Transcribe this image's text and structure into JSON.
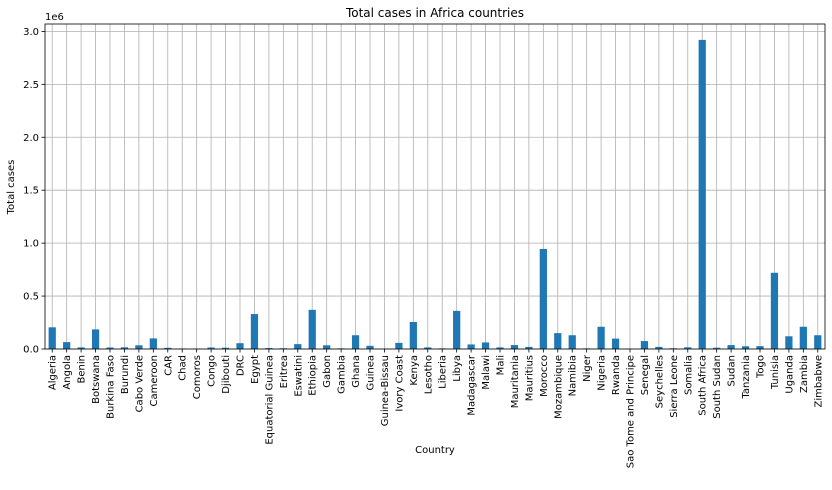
{
  "chart_data": {
    "type": "bar",
    "title": "Total cases in Africa countries",
    "xlabel": "Country",
    "ylabel": "Total cases",
    "y_scale_label": "1e6",
    "ylim": [
      0,
      3.07
    ],
    "yticks": [
      0.0,
      0.5,
      1.0,
      1.5,
      2.0,
      2.5,
      3.0
    ],
    "ytick_labels": [
      "0.0",
      "0.5",
      "1.0",
      "1.5",
      "2.0",
      "2.5",
      "3.0"
    ],
    "grid": true,
    "bar_color": "#1f77b4",
    "categories": [
      "Algeria",
      "Angola",
      "Benin",
      "Botswana",
      "Burkina Faso",
      "Burundi",
      "Cabo Verde",
      "Cameroon",
      "CAR",
      "Chad",
      "Comoros",
      "Congo",
      "Djibouti",
      "DRC",
      "Egypt",
      "Equatorial Guinea",
      "Eritrea",
      "Eswatini",
      "Ethiopia",
      "Gabon",
      "Gambia",
      "Ghana",
      "Guinea",
      "Guinea-Bissau",
      "Ivory Coast",
      "Kenya",
      "Lesotho",
      "Liberia",
      "Libya",
      "Madagascar",
      "Malawi",
      "Mali",
      "Mauritania",
      "Mauritius",
      "Morocco",
      "Mozambique",
      "Namibia",
      "Niger",
      "Nigeria",
      "Rwanda",
      "Sao Tome and Principe",
      "Senegal",
      "Seychelles",
      "Sierra Leone",
      "Somalia",
      "South Africa",
      "South Sudan",
      "Sudan",
      "Tanzania",
      "Togo",
      "Tunisia",
      "Uganda",
      "Zambia",
      "Zimbabwe"
    ],
    "values": [
      0.205,
      0.065,
      0.015,
      0.185,
      0.014,
      0.016,
      0.035,
      0.1,
      0.011,
      0.005,
      0.004,
      0.014,
      0.012,
      0.055,
      0.33,
      0.009,
      0.007,
      0.046,
      0.37,
      0.035,
      0.006,
      0.13,
      0.03,
      0.004,
      0.058,
      0.255,
      0.015,
      0.006,
      0.36,
      0.043,
      0.062,
      0.015,
      0.037,
      0.02,
      0.945,
      0.15,
      0.13,
      0.006,
      0.21,
      0.098,
      0.003,
      0.075,
      0.02,
      0.007,
      0.016,
      2.92,
      0.012,
      0.037,
      0.026,
      0.027,
      0.72,
      0.12,
      0.21,
      0.13
    ]
  }
}
